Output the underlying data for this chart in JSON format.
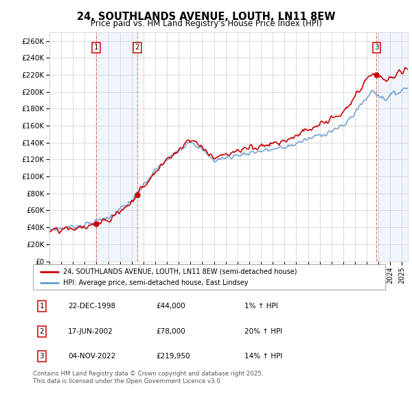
{
  "title": "24, SOUTHLANDS AVENUE, LOUTH, LN11 8EW",
  "subtitle": "Price paid vs. HM Land Registry's House Price Index (HPI)",
  "ylabel_ticks": [
    0,
    20000,
    40000,
    60000,
    80000,
    100000,
    120000,
    140000,
    160000,
    180000,
    200000,
    220000,
    240000,
    260000
  ],
  "ylim": [
    0,
    270000
  ],
  "xlim_start": 1995.0,
  "xlim_end": 2025.5,
  "sale_dates": [
    1998.97,
    2002.46,
    2022.84
  ],
  "sale_prices": [
    44000,
    78000,
    219950
  ],
  "sale_labels": [
    "1",
    "2",
    "3"
  ],
  "legend_entries": [
    "24, SOUTHLANDS AVENUE, LOUTH, LN11 8EW (semi-detached house)",
    "HPI: Average price, semi-detached house, East Lindsey"
  ],
  "table_data": [
    [
      "1",
      "22-DEC-1998",
      "£44,000",
      "1% ↑ HPI"
    ],
    [
      "2",
      "17-JUN-2002",
      "£78,000",
      "20% ↑ HPI"
    ],
    [
      "3",
      "04-NOV-2022",
      "£219,950",
      "14% ↑ HPI"
    ]
  ],
  "footnote": "Contains HM Land Registry data © Crown copyright and database right 2025.\nThis data is licensed under the Open Government Licence v3.0.",
  "red_color": "#cc0000",
  "blue_color": "#6699cc",
  "grid_color": "#cccccc",
  "bg_color": "#ffffff"
}
